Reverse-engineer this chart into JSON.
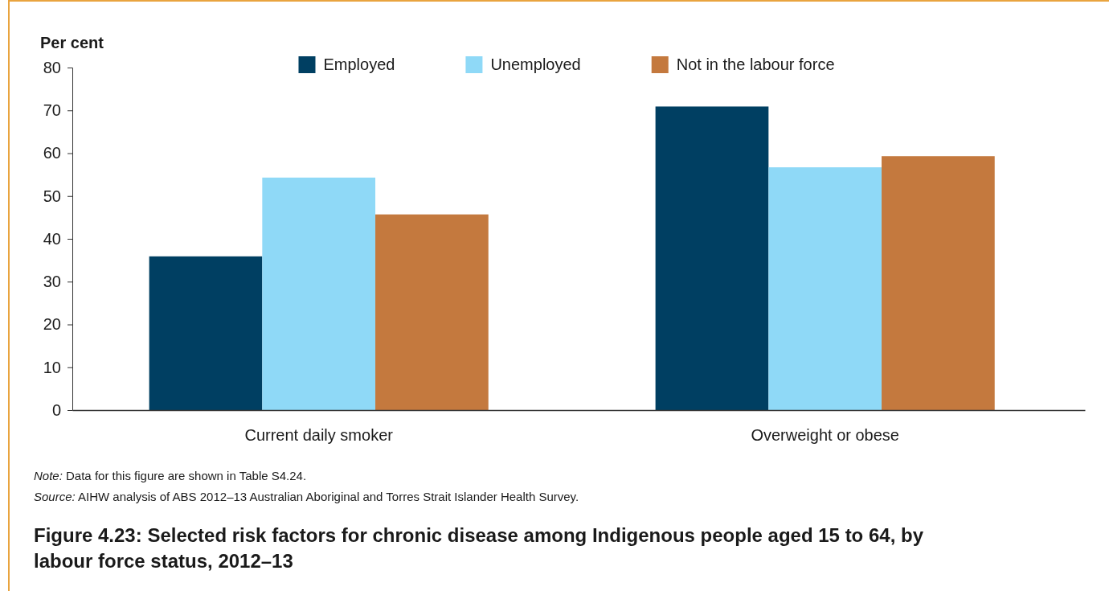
{
  "chart_data": {
    "type": "bar",
    "title": "Figure 4.23: Selected risk factors for chronic disease among Indigenous people aged 15 to 64, by labour force status, 2012–13",
    "ylabel": "Per cent",
    "categories": [
      "Current daily smoker",
      "Overweight or obese"
    ],
    "series": [
      {
        "name": "Employed",
        "color": "#003f62",
        "values": [
          35.9,
          70.9
        ]
      },
      {
        "name": "Unemployed",
        "color": "#8fd9f7",
        "values": [
          54.3,
          56.7
        ]
      },
      {
        "name": "Not in the labour force",
        "color": "#c4793e",
        "values": [
          45.7,
          59.3
        ]
      }
    ],
    "ylim": [
      0,
      80
    ],
    "yticks": [
      0,
      10,
      20,
      30,
      40,
      50,
      60,
      70,
      80
    ],
    "legend": "top",
    "annotations": [
      "Note: Data for this figure are shown in Table S4.24.",
      "Source: AIHW analysis of ABS 2012–13 Australian Aboriginal and Torres Strait Islander Health Survey."
    ]
  }
}
